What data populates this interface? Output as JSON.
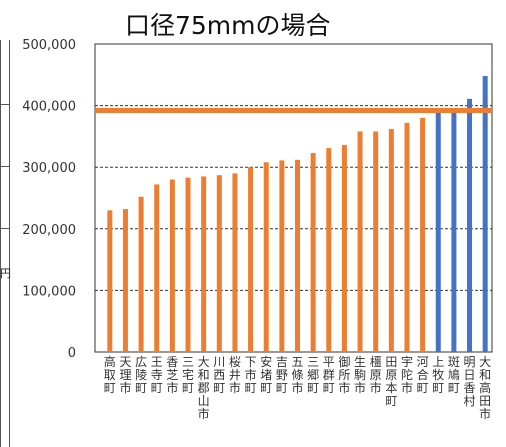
{
  "chart_data": {
    "type": "bar",
    "title": "口径75mmの場合",
    "xlabel": "",
    "ylabel": "",
    "ylim": [
      0,
      500000
    ],
    "yticks": [
      "500,000",
      "400,000",
      "300,000",
      "200,000",
      "100,000",
      "0"
    ],
    "grid": true,
    "reference_line": 392000,
    "categories": [
      "高取町",
      "天理市",
      "広陵町",
      "王寺町",
      "香芝市",
      "三宅町",
      "大和郡山市",
      "川西町",
      "桜井市",
      "下市町",
      "安堵町",
      "吉野町",
      "五條市",
      "三郷町",
      "平群町",
      "御所市",
      "生駒市",
      "橿原市",
      "田原本町",
      "宇陀市",
      "河合町",
      "上牧町",
      "斑鳩町",
      "明日香村",
      "大和高田市"
    ],
    "values": [
      230000,
      232000,
      252000,
      272000,
      280000,
      283000,
      285000,
      287000,
      290000,
      300000,
      308000,
      311000,
      312000,
      323000,
      331000,
      336000,
      358000,
      358000,
      362000,
      372000,
      380000,
      390000,
      392000,
      411000,
      448000
    ],
    "highlight_from_index": 21
  },
  "colors": {
    "bar": "#ED7D31",
    "highlight_bar": "#4472C4",
    "reference_line": "#ED7D31",
    "grid": "#333333"
  },
  "cropped_left_label": "円"
}
